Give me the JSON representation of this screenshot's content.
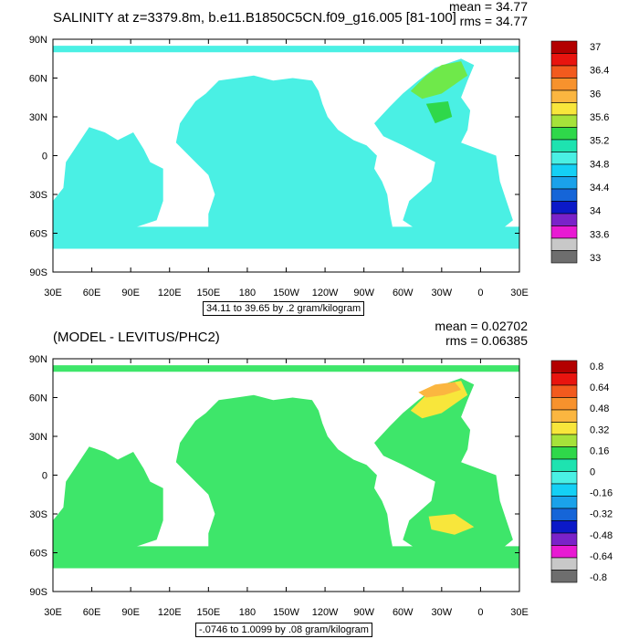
{
  "chart_data": [
    {
      "type": "heatmap",
      "title": "SALINITY at z=3379.8m, b.e11.B1850C5CN.f09_g16.005 [81-100]",
      "stats": {
        "mean": "mean = 34.77",
        "rms": "rms = 34.77"
      },
      "footer": "34.11 to 39.65 by .2 gram/kilogram",
      "x_ticks": [
        "30E",
        "60E",
        "90E",
        "120E",
        "150E",
        "180",
        "150W",
        "120W",
        "90W",
        "60W",
        "30W",
        "0",
        "30E"
      ],
      "y_ticks": [
        "90N",
        "60N",
        "30N",
        "0",
        "30S",
        "60S",
        "90S"
      ],
      "colorbar": {
        "labels": [
          "37",
          "36.4",
          "36",
          "35.6",
          "35.2",
          "34.8",
          "34.4",
          "34",
          "33.6",
          "33"
        ],
        "colors": [
          "#b30000",
          "#e8140f",
          "#f25a1e",
          "#f7922d",
          "#fbb640",
          "#f8e63b",
          "#a6e23a",
          "#2fd84a",
          "#1ee3b0",
          "#4af0e4",
          "#14d0f5",
          "#1aa2ea",
          "#1565d8",
          "#0b19c8",
          "#7a22c9",
          "#e81ad3",
          "#c8c8c8",
          "#6e6e6e"
        ]
      },
      "map_color_dominant": "#4af0e4",
      "map_color_atlantic": "#6fe94a"
    },
    {
      "type": "heatmap",
      "title": "(MODEL - LEVITUS/PHC2)",
      "stats": {
        "mean": "mean = 0.02702",
        "rms": "rms = 0.06385"
      },
      "footer": "-.0746 to 1.0099 by .08 gram/kilogram",
      "x_ticks": [
        "30E",
        "60E",
        "90E",
        "120E",
        "150E",
        "180",
        "150W",
        "120W",
        "90W",
        "60W",
        "30W",
        "0",
        "30E"
      ],
      "y_ticks": [
        "90N",
        "60N",
        "30N",
        "0",
        "30S",
        "60S",
        "90S"
      ],
      "colorbar": {
        "labels": [
          "0.8",
          "0.64",
          "0.48",
          "0.32",
          "0.16",
          "0",
          "-0.16",
          "-0.32",
          "-0.48",
          "-0.64",
          "-0.8"
        ],
        "colors": [
          "#b30000",
          "#e8140f",
          "#f25a1e",
          "#f7922d",
          "#fbb640",
          "#f8e63b",
          "#a6e23a",
          "#2fd84a",
          "#1ee3b0",
          "#4af0e4",
          "#14d0f5",
          "#1aa2ea",
          "#1565d8",
          "#0b19c8",
          "#7a22c9",
          "#e81ad3",
          "#c8c8c8",
          "#6e6e6e"
        ]
      },
      "map_color_dominant": "#3ee66a",
      "map_color_atlantic": "#f8e63b"
    }
  ]
}
